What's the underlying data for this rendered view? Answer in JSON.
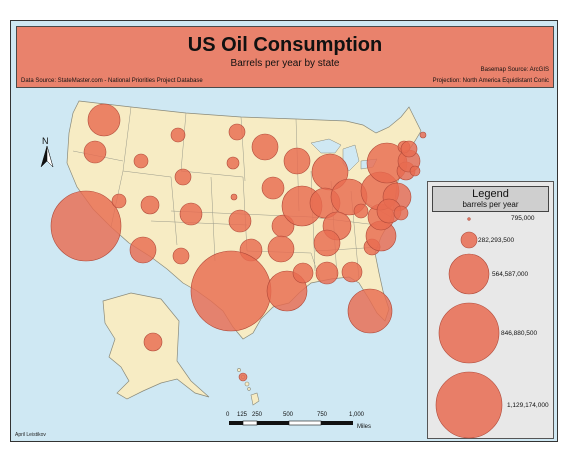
{
  "map": {
    "title": "US Oil Consumption",
    "subtitle": "Barrels per year by state",
    "data_source": "Data Source: StateMaster.com - National Priorities Project Database",
    "basemap_source": "Basemap Source: ArcGIS",
    "projection": "Projection: North America Equidistant Conic",
    "author": "April Leistikov",
    "north_label": "N",
    "colors": {
      "water": "#cfe8f3",
      "land": "#f7ecc4",
      "bubble_fill": "#e86b51",
      "bubble_stroke": "#b04a3a",
      "banner": "#e9826c"
    }
  },
  "legend": {
    "title": "Legend",
    "subtitle": "barrels per year",
    "items": [
      {
        "label": "795,000",
        "value": 795000
      },
      {
        "label": "282,293,500",
        "value": 282293500
      },
      {
        "label": "564,587,000",
        "value": 564587000
      },
      {
        "label": "846,880,500",
        "value": 846880500
      },
      {
        "label": "1,129,174,000",
        "value": 1129174000
      }
    ]
  },
  "scale_bar": {
    "labels": [
      "0",
      "125",
      "250",
      "500",
      "750",
      "1,000"
    ],
    "unit": "Miles"
  }
}
